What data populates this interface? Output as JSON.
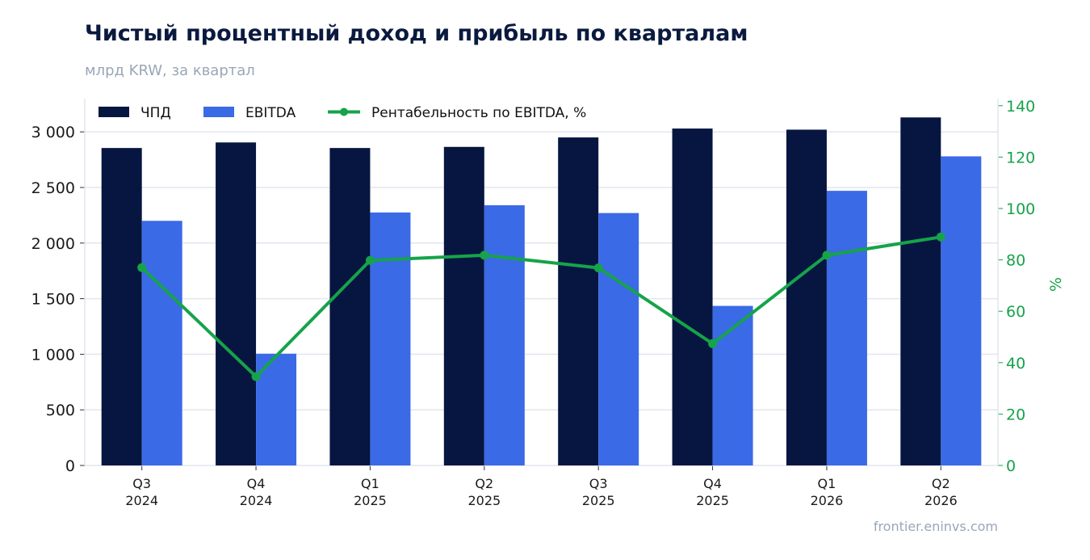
{
  "header": {
    "title": "Чистый процентный доход и прибыль по кварталам",
    "subtitle": "млрд KRW, за квартал"
  },
  "footer": {
    "source": "frontier.eninvs.com"
  },
  "colors": {
    "npd": "#061640",
    "ebitda": "#3b6ae6",
    "margin": "#16a34a",
    "grid": "#e3e6ee"
  },
  "chart_data": {
    "type": "bar",
    "categories": [
      [
        "Q3",
        "2024"
      ],
      [
        "Q4",
        "2024"
      ],
      [
        "Q1",
        "2025"
      ],
      [
        "Q2",
        "2025"
      ],
      [
        "Q3",
        "2025"
      ],
      [
        "Q4",
        "2025"
      ],
      [
        "Q1",
        "2026"
      ],
      [
        "Q2",
        "2026"
      ]
    ],
    "series": [
      {
        "name": "ЧПД",
        "type": "bar",
        "axis": "left",
        "values": [
          2855,
          2905,
          2855,
          2865,
          2950,
          3030,
          3020,
          3130
        ]
      },
      {
        "name": "EBITDA",
        "type": "bar",
        "axis": "left",
        "values": [
          2200,
          1005,
          2275,
          2340,
          2270,
          1435,
          2470,
          2780
        ]
      },
      {
        "name": "Рентабельность по EBITDA, %",
        "type": "line",
        "axis": "right",
        "values": [
          77.0,
          34.6,
          79.8,
          81.8,
          76.9,
          47.4,
          81.8,
          88.9
        ]
      }
    ],
    "y_left": {
      "min": 0,
      "max": 3300,
      "ticks": [
        0,
        500,
        1000,
        1500,
        2000,
        2500,
        3000
      ],
      "tick_labels": [
        "0",
        "500",
        "1 000",
        "1 500",
        "2 000",
        "2 500",
        "3 000"
      ]
    },
    "y_right": {
      "label": "%",
      "min": 0,
      "max": 140,
      "ticks": [
        0,
        20,
        40,
        60,
        80,
        100,
        120,
        140
      ],
      "tick_labels": [
        "0",
        "20",
        "40",
        "60",
        "80",
        "100",
        "120",
        "140"
      ]
    },
    "grid": true,
    "legend_position": "top-left"
  }
}
